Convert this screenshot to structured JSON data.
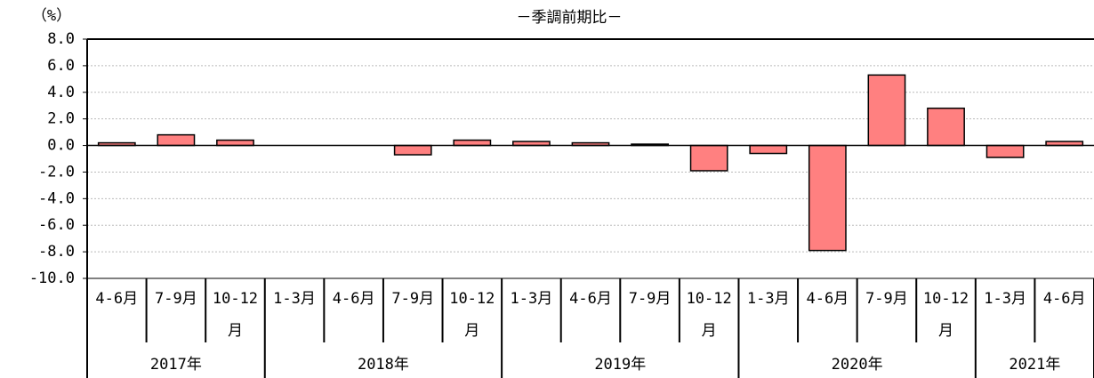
{
  "chart_data": {
    "type": "bar",
    "subtitle": "－季調前期比－",
    "y_unit": "（%）",
    "groups": [
      {
        "name": "2017年",
        "categories": [
          "4-6月",
          "7-9月",
          "10-12月"
        ]
      },
      {
        "name": "2018年",
        "categories": [
          "1-3月",
          "4-6月",
          "7-9月",
          "10-12月"
        ]
      },
      {
        "name": "2019年",
        "categories": [
          "1-3月",
          "4-6月",
          "7-9月",
          "10-12月"
        ]
      },
      {
        "name": "2020年",
        "categories": [
          "1-3月",
          "4-6月",
          "7-9月",
          "10-12月"
        ]
      },
      {
        "name": "2021年",
        "categories": [
          "1-3月",
          "4-6月"
        ]
      }
    ],
    "values": [
      0.2,
      0.8,
      0.4,
      0.0,
      0.0,
      -0.7,
      0.4,
      0.3,
      0.2,
      0.1,
      -1.9,
      -0.6,
      -7.9,
      5.3,
      2.8,
      -0.9,
      0.3
    ],
    "color": "#ff8080",
    "ylim": [
      -10,
      8
    ],
    "yticks": [
      {
        "value": -10,
        "label": "-10.0"
      },
      {
        "value": -8,
        "label": "-8.0"
      },
      {
        "value": -6,
        "label": "-6.0"
      },
      {
        "value": -4,
        "label": "-4.0"
      },
      {
        "value": -2,
        "label": "-2.0"
      },
      {
        "value": 0,
        "label": "0.0"
      },
      {
        "value": 2,
        "label": "2.0"
      },
      {
        "value": 4,
        "label": "4.0"
      },
      {
        "value": 6,
        "label": "6.0"
      },
      {
        "value": 8,
        "label": "8.0"
      }
    ],
    "grid": true
  }
}
